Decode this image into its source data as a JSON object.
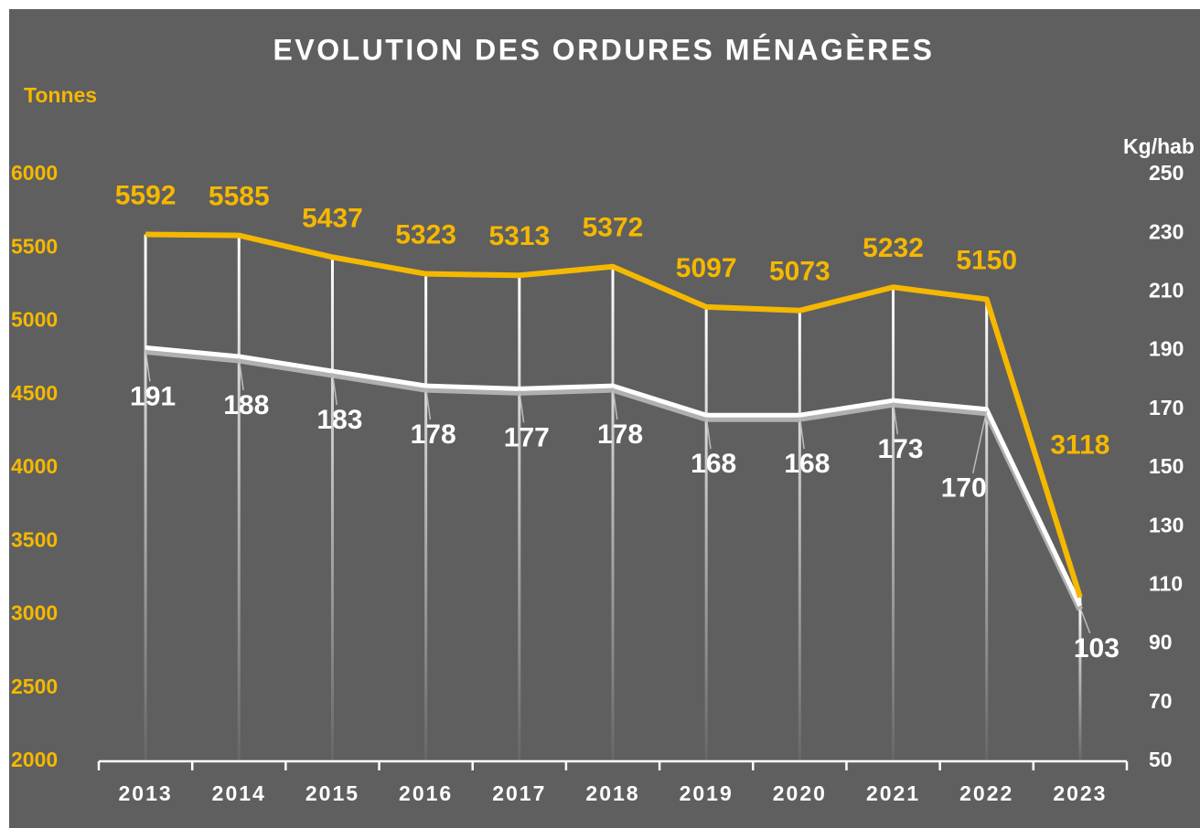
{
  "chart_data": {
    "type": "line",
    "title": "EVOLUTION DES ORDURES MÉNAGÈRES",
    "y_label": "Tonnes",
    "y2_label": "Kg/hab",
    "categories": [
      "2013",
      "2014",
      "2015",
      "2016",
      "2017",
      "2018",
      "2019",
      "2020",
      "2021",
      "2022",
      "2023"
    ],
    "series": [
      {
        "color": "#f5b800",
        "values": [
          5592,
          5585,
          5437,
          5323,
          5313,
          5372,
          5097,
          5073,
          5232,
          5150,
          3118
        ]
      },
      {
        "color": "#ffffff",
        "axis": "y2",
        "values": [
          191,
          188,
          183,
          178,
          177,
          178,
          168,
          168,
          173,
          170,
          103
        ]
      }
    ],
    "ylim": [
      2000,
      6000
    ],
    "yticks": [
      2000,
      2500,
      3000,
      3500,
      4000,
      4500,
      5000,
      5500,
      6000
    ],
    "y2lim": [
      50,
      250
    ],
    "y2ticks": [
      50,
      70,
      90,
      110,
      130,
      150,
      170,
      190,
      210,
      230,
      250
    ]
  }
}
